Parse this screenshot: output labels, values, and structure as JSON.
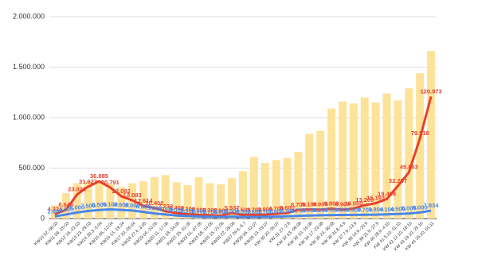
{
  "chart_data": {
    "type": "bar-line",
    "categories": [
      "KW10 02.-08.03",
      "KW11 09.-15.03",
      "KW12 16.-22.03",
      "KW13 23.-29.03",
      "KW14 30.3.-5.04",
      "KW15 06.-12.04",
      "KW16 13.-19.04",
      "KW17 20.-26.04",
      "KW18 27.4.-3.05",
      "KW19 04.-10.05",
      "KW20 11.-17.05",
      "KW21 18.-24.05",
      "KW22 25.-31.05",
      "KW23 01.-07.06",
      "KW24 08.-14.06",
      "KW25 15.-21.06",
      "KW26 22.-28.06",
      "KW27 29.6.-5.7",
      "KW28 06.-12.07",
      "KW29 13.-19.07",
      "KW 30 20.-26.07",
      "KW 31 27.-2.8",
      "KW 32 03.-09.08",
      "KW 33 10.-16.08",
      "KW 34 17.-23.08",
      "KW 35 24.-30.08",
      "KW 36 31.8.-6.9",
      "KW 37 7.9.-13.9",
      "KW 38 14.9.-20.9",
      "KW 39 21.9.-27.9",
      "KW 40 28.9.-4.10",
      "KW 41 5.10.-11.10",
      "KW 42 12.10.-18.10",
      "KW 43 19.10.-25.10",
      "KW 44 26.10.-01.11"
    ],
    "series": [
      {
        "kind": "bar",
        "color": "#fde29a",
        "values": [
          130000,
          250000,
          350000,
          370000,
          380000,
          340000,
          310000,
          350000,
          370000,
          410000,
          430000,
          360000,
          330000,
          410000,
          350000,
          340000,
          400000,
          470000,
          610000,
          550000,
          580000,
          600000,
          660000,
          840000,
          870000,
          1090000,
          1160000,
          1140000,
          1200000,
          1150000,
          1240000,
          1170000,
          1290000,
          1440000,
          1660000
        ]
      },
      {
        "kind": "line",
        "axis": "y2",
        "color": "#e8412c",
        "values": [
          4324,
          8646,
          23820,
          31622,
          36885,
          30791,
          22082,
          18083,
          12614,
          10400,
          7233,
          5400,
          4300,
          3600,
          3300,
          2900,
          5537,
          3500,
          3700,
          3800,
          4700,
          5600,
          8700,
          9100,
          8900,
          9800,
          8900,
          10000,
          13200,
          15193,
          19408,
          32267,
          45863,
          79518,
          120973
        ],
        "value_labels": [
          "4.324",
          "8.646",
          "23.820",
          "31.622",
          "36.885",
          "30.791",
          "22.082",
          "18.083",
          "12.614",
          "10.400",
          "7.233",
          "5.400",
          "4.300",
          "3.600",
          "3.300",
          "2.900",
          "5.537",
          "3.500",
          "3.700",
          "3.800",
          "4.700",
          "5.600",
          "8.700",
          "9.100",
          "8.900",
          "9.800",
          "8.900",
          "10.000",
          "13.200",
          "15.193",
          "19.408",
          "32.267",
          "45.863",
          "79.518",
          "120.973"
        ]
      },
      {
        "kind": "line",
        "axis": "y2",
        "color": "#4a86e8",
        "values": [
          2000,
          4000,
          6000,
          7500,
          8500,
          9100,
          8600,
          8000,
          6600,
          5000,
          4000,
          3000,
          2500,
          2000,
          1700,
          1600,
          2000,
          1500,
          1600,
          1700,
          1900,
          2300,
          2700,
          3000,
          3200,
          3400,
          3500,
          3600,
          3700,
          3800,
          4100,
          4500,
          5000,
          6000,
          7834
        ],
        "value_labels": [
          "2.000",
          "4.000",
          "6.000",
          "7.500",
          "8.500",
          "9.100",
          "8.600",
          "8.000",
          "6.600",
          "5.000",
          "4.000",
          "3.000",
          "2.500",
          "2.000",
          "1.700",
          "1.600",
          "2.000",
          "1.500",
          "1.600",
          "1.700",
          "1.900",
          "2.300",
          "2.700",
          "3.000",
          "3.200",
          "3.400",
          "3.500",
          "3.600",
          "3.700",
          "3.800",
          "4.100",
          "4.500",
          "5.000",
          "6.000",
          "7.834"
        ]
      }
    ],
    "ylim": [
      0,
      2000000
    ],
    "yticks": [
      0,
      {
        "value": 500000,
        "label": "500.000"
      },
      {
        "value": 1000000,
        "label": "1.000.000"
      },
      {
        "value": 1500000,
        "label": "1.500.000"
      },
      {
        "value": 2000000,
        "label": "2.000.000"
      }
    ],
    "y2lim": [
      0,
      200000
    ],
    "grid": true
  }
}
